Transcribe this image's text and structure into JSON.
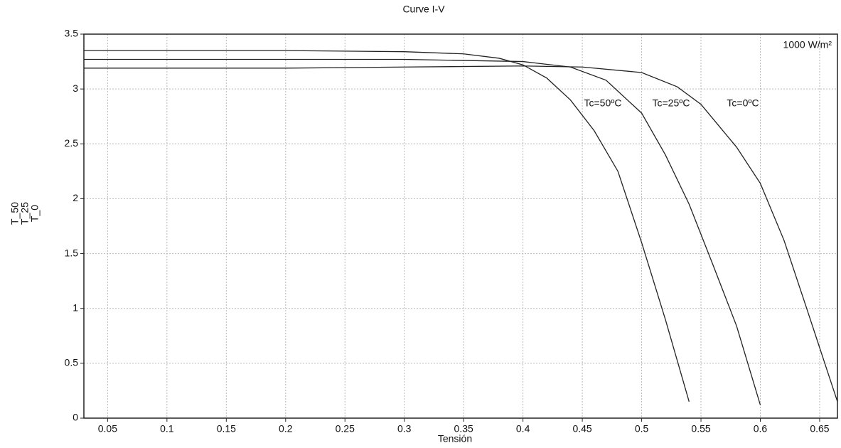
{
  "chart_data": {
    "type": "line",
    "title": "Curve I-V",
    "xlabel": "Tensión",
    "series": [
      {
        "name": "T_50",
        "color": "#222222",
        "x": [
          0.03,
          0.1,
          0.2,
          0.3,
          0.35,
          0.38,
          0.4,
          0.42,
          0.44,
          0.46,
          0.48,
          0.5,
          0.52,
          0.54
        ],
        "values": [
          3.35,
          3.35,
          3.35,
          3.34,
          3.32,
          3.28,
          3.22,
          3.1,
          2.9,
          2.62,
          2.25,
          1.6,
          0.9,
          0.15
        ]
      },
      {
        "name": "T_25",
        "color": "#222222",
        "x": [
          0.03,
          0.2,
          0.3,
          0.4,
          0.44,
          0.47,
          0.5,
          0.52,
          0.54,
          0.56,
          0.58,
          0.6
        ],
        "values": [
          3.27,
          3.27,
          3.27,
          3.25,
          3.2,
          3.08,
          2.78,
          2.4,
          1.95,
          1.4,
          0.84,
          0.12
        ]
      },
      {
        "name": "T_0",
        "color": "#222222",
        "x": [
          0.03,
          0.2,
          0.3,
          0.4,
          0.45,
          0.5,
          0.53,
          0.55,
          0.58,
          0.6,
          0.62,
          0.64,
          0.665
        ],
        "values": [
          3.19,
          3.19,
          3.2,
          3.21,
          3.2,
          3.15,
          3.02,
          2.86,
          2.47,
          2.14,
          1.62,
          0.97,
          0.15
        ]
      }
    ],
    "annotations": [
      "Tc=50ºC",
      "Tc=25ºC",
      "Tc=0ºC",
      "1000 W/m²"
    ],
    "xlim": [
      0.03,
      0.665
    ],
    "xticks": [
      0.05,
      0.1,
      0.15,
      0.2,
      0.25,
      0.3,
      0.35,
      0.4,
      0.45,
      0.5,
      0.55,
      0.6,
      0.65
    ],
    "ylim": [
      0,
      3.5
    ],
    "yticks": [
      0,
      0.5,
      1,
      1.5,
      2,
      2.5,
      3,
      3.5
    ],
    "grid": true
  }
}
